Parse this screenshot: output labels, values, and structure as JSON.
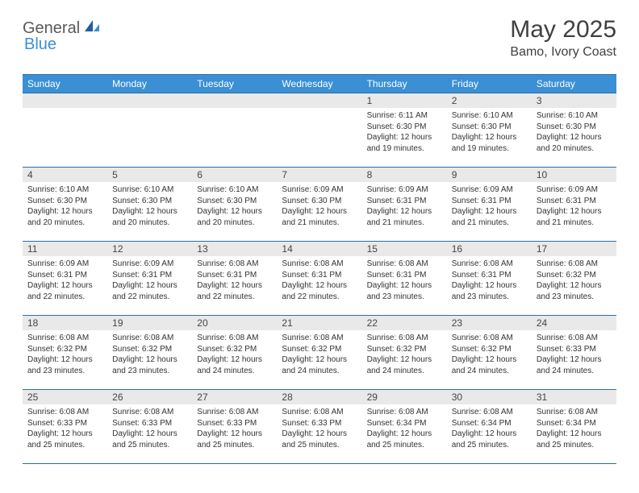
{
  "brand": {
    "part1": "General",
    "part2": "Blue"
  },
  "title": "May 2025",
  "location": "Bamo, Ivory Coast",
  "colors": {
    "header_bg": "#3b8fd4",
    "header_text": "#ffffff",
    "border": "#2d6fa3",
    "daynum_bg": "#e9e9e9",
    "text": "#333333",
    "logo_gray": "#5a5a5a",
    "logo_blue": "#3b8fd4"
  },
  "weekdays": [
    "Sunday",
    "Monday",
    "Tuesday",
    "Wednesday",
    "Thursday",
    "Friday",
    "Saturday"
  ],
  "weeks": [
    [
      {
        "empty": true
      },
      {
        "empty": true
      },
      {
        "empty": true
      },
      {
        "empty": true
      },
      {
        "num": "1",
        "sunrise": "6:11 AM",
        "sunset": "6:30 PM",
        "daylight": "12 hours and 19 minutes."
      },
      {
        "num": "2",
        "sunrise": "6:10 AM",
        "sunset": "6:30 PM",
        "daylight": "12 hours and 19 minutes."
      },
      {
        "num": "3",
        "sunrise": "6:10 AM",
        "sunset": "6:30 PM",
        "daylight": "12 hours and 20 minutes."
      }
    ],
    [
      {
        "num": "4",
        "sunrise": "6:10 AM",
        "sunset": "6:30 PM",
        "daylight": "12 hours and 20 minutes."
      },
      {
        "num": "5",
        "sunrise": "6:10 AM",
        "sunset": "6:30 PM",
        "daylight": "12 hours and 20 minutes."
      },
      {
        "num": "6",
        "sunrise": "6:10 AM",
        "sunset": "6:30 PM",
        "daylight": "12 hours and 20 minutes."
      },
      {
        "num": "7",
        "sunrise": "6:09 AM",
        "sunset": "6:30 PM",
        "daylight": "12 hours and 21 minutes."
      },
      {
        "num": "8",
        "sunrise": "6:09 AM",
        "sunset": "6:31 PM",
        "daylight": "12 hours and 21 minutes."
      },
      {
        "num": "9",
        "sunrise": "6:09 AM",
        "sunset": "6:31 PM",
        "daylight": "12 hours and 21 minutes."
      },
      {
        "num": "10",
        "sunrise": "6:09 AM",
        "sunset": "6:31 PM",
        "daylight": "12 hours and 21 minutes."
      }
    ],
    [
      {
        "num": "11",
        "sunrise": "6:09 AM",
        "sunset": "6:31 PM",
        "daylight": "12 hours and 22 minutes."
      },
      {
        "num": "12",
        "sunrise": "6:09 AM",
        "sunset": "6:31 PM",
        "daylight": "12 hours and 22 minutes."
      },
      {
        "num": "13",
        "sunrise": "6:08 AM",
        "sunset": "6:31 PM",
        "daylight": "12 hours and 22 minutes."
      },
      {
        "num": "14",
        "sunrise": "6:08 AM",
        "sunset": "6:31 PM",
        "daylight": "12 hours and 22 minutes."
      },
      {
        "num": "15",
        "sunrise": "6:08 AM",
        "sunset": "6:31 PM",
        "daylight": "12 hours and 23 minutes."
      },
      {
        "num": "16",
        "sunrise": "6:08 AM",
        "sunset": "6:31 PM",
        "daylight": "12 hours and 23 minutes."
      },
      {
        "num": "17",
        "sunrise": "6:08 AM",
        "sunset": "6:32 PM",
        "daylight": "12 hours and 23 minutes."
      }
    ],
    [
      {
        "num": "18",
        "sunrise": "6:08 AM",
        "sunset": "6:32 PM",
        "daylight": "12 hours and 23 minutes."
      },
      {
        "num": "19",
        "sunrise": "6:08 AM",
        "sunset": "6:32 PM",
        "daylight": "12 hours and 23 minutes."
      },
      {
        "num": "20",
        "sunrise": "6:08 AM",
        "sunset": "6:32 PM",
        "daylight": "12 hours and 24 minutes."
      },
      {
        "num": "21",
        "sunrise": "6:08 AM",
        "sunset": "6:32 PM",
        "daylight": "12 hours and 24 minutes."
      },
      {
        "num": "22",
        "sunrise": "6:08 AM",
        "sunset": "6:32 PM",
        "daylight": "12 hours and 24 minutes."
      },
      {
        "num": "23",
        "sunrise": "6:08 AM",
        "sunset": "6:32 PM",
        "daylight": "12 hours and 24 minutes."
      },
      {
        "num": "24",
        "sunrise": "6:08 AM",
        "sunset": "6:33 PM",
        "daylight": "12 hours and 24 minutes."
      }
    ],
    [
      {
        "num": "25",
        "sunrise": "6:08 AM",
        "sunset": "6:33 PM",
        "daylight": "12 hours and 25 minutes."
      },
      {
        "num": "26",
        "sunrise": "6:08 AM",
        "sunset": "6:33 PM",
        "daylight": "12 hours and 25 minutes."
      },
      {
        "num": "27",
        "sunrise": "6:08 AM",
        "sunset": "6:33 PM",
        "daylight": "12 hours and 25 minutes."
      },
      {
        "num": "28",
        "sunrise": "6:08 AM",
        "sunset": "6:33 PM",
        "daylight": "12 hours and 25 minutes."
      },
      {
        "num": "29",
        "sunrise": "6:08 AM",
        "sunset": "6:34 PM",
        "daylight": "12 hours and 25 minutes."
      },
      {
        "num": "30",
        "sunrise": "6:08 AM",
        "sunset": "6:34 PM",
        "daylight": "12 hours and 25 minutes."
      },
      {
        "num": "31",
        "sunrise": "6:08 AM",
        "sunset": "6:34 PM",
        "daylight": "12 hours and 25 minutes."
      }
    ]
  ],
  "labels": {
    "sunrise": "Sunrise: ",
    "sunset": "Sunset: ",
    "daylight": "Daylight: "
  }
}
